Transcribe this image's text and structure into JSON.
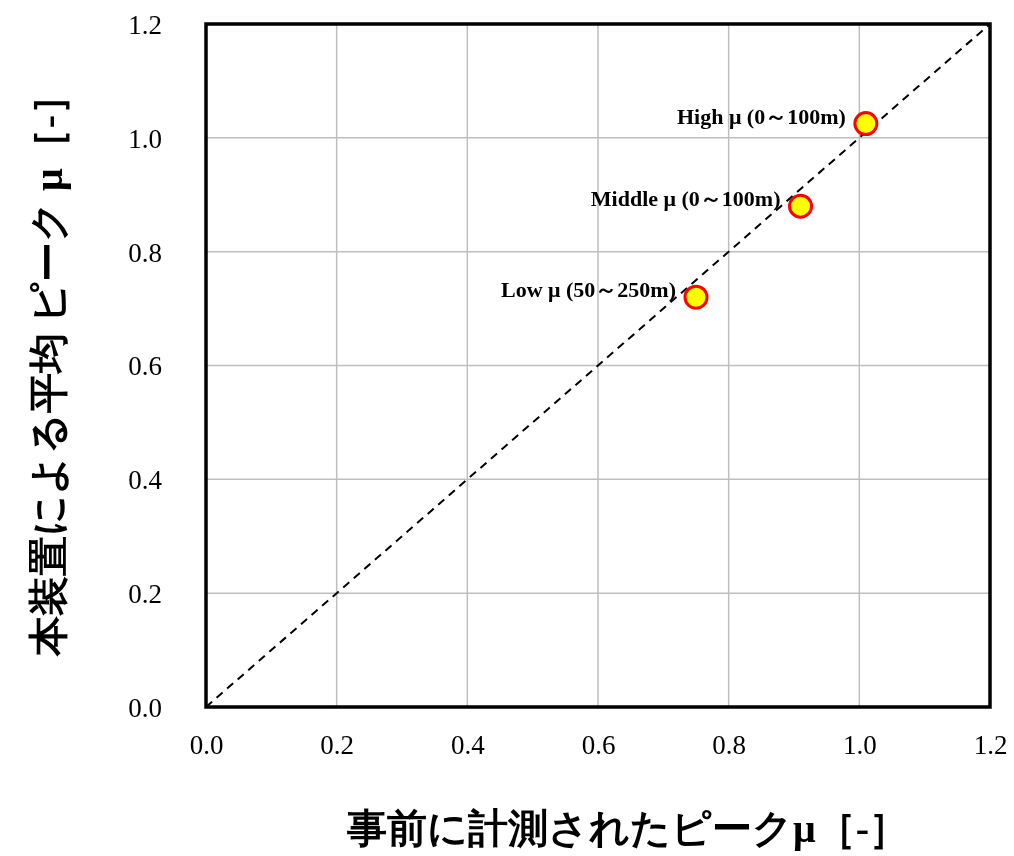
{
  "chart_data": {
    "type": "scatter",
    "xlabel": "事前に計測されたピークμ［-］",
    "ylabel": "本装置による平均 ピーク μ［-］",
    "xlim": [
      0,
      1.2
    ],
    "ylim": [
      0,
      1.2
    ],
    "xticks": [
      {
        "value": 0,
        "label": "0.0"
      },
      {
        "value": 0.2,
        "label": "0.2"
      },
      {
        "value": 0.4,
        "label": "0.4"
      },
      {
        "value": 0.6,
        "label": "0.6"
      },
      {
        "value": 0.8,
        "label": "0.8"
      },
      {
        "value": 1,
        "label": "1.0"
      },
      {
        "value": 1.2,
        "label": "1.2"
      }
    ],
    "yticks": [
      {
        "value": 0,
        "label": "0.0"
      },
      {
        "value": 0.2,
        "label": "0.2"
      },
      {
        "value": 0.4,
        "label": "0.4"
      },
      {
        "value": 0.6,
        "label": "0.6"
      },
      {
        "value": 0.8,
        "label": "0.8"
      },
      {
        "value": 1,
        "label": "1.0"
      },
      {
        "value": 1.2,
        "label": "1.2"
      }
    ],
    "grid": true,
    "series": [
      {
        "type": "line",
        "color": "#000000",
        "x": [
          0,
          1.2
        ],
        "values": [
          0,
          1.2
        ],
        "marker": "none",
        "line_style": "dashed"
      },
      {
        "color": "#ffff00",
        "x": [
          0.75,
          0.91,
          1.01
        ],
        "values": [
          0.72,
          0.88,
          1.025
        ],
        "marker": "circle"
      }
    ],
    "annotations": [
      {
        "text": "Low μ (50～250m)",
        "x": 0.75,
        "y": 0.72
      },
      {
        "text": "Middle μ (0～100m)",
        "x": 0.91,
        "y": 0.88
      },
      {
        "text": "High μ (0～100m)",
        "x": 1.01,
        "y": 1.025
      }
    ]
  }
}
